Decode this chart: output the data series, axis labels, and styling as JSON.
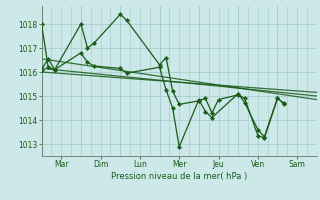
{
  "bg_color": "#cce8e8",
  "grid_color": "#aacece",
  "line_color": "#1a5c1a",
  "days": [
    "Mar",
    "Dim",
    "Lun",
    "Mer",
    "Jeu",
    "Ven",
    "Sam"
  ],
  "xlabel": "Pression niveau de la mer( hPa )",
  "ylim": [
    1012.5,
    1018.75
  ],
  "yticks": [
    1013,
    1014,
    1015,
    1016,
    1017,
    1018
  ],
  "xlim": [
    0,
    168
  ],
  "day_positions": [
    12,
    36,
    60,
    84,
    108,
    132,
    156
  ],
  "day_sep_x": [
    0,
    24,
    48,
    72,
    96,
    120,
    144,
    168
  ],
  "series1_x": [
    0,
    4,
    8,
    24,
    28,
    32,
    48,
    52,
    72,
    76,
    80,
    84,
    96,
    100,
    104,
    108,
    120,
    124,
    132,
    136,
    144,
    148
  ],
  "series1_y": [
    1018.0,
    1016.2,
    1016.1,
    1018.0,
    1017.0,
    1017.2,
    1018.4,
    1018.15,
    1016.3,
    1016.6,
    1015.2,
    1014.65,
    1014.8,
    1014.9,
    1014.3,
    1014.85,
    1015.05,
    1014.9,
    1013.35,
    1013.25,
    1014.9,
    1014.7
  ],
  "series2_x": [
    0,
    4,
    8,
    24,
    28,
    32,
    48,
    52,
    72,
    76,
    80,
    84,
    96,
    100,
    104,
    120,
    124,
    132,
    136,
    144,
    148
  ],
  "series2_y": [
    1016.1,
    1016.55,
    1016.1,
    1016.8,
    1016.4,
    1016.25,
    1016.15,
    1015.95,
    1016.2,
    1015.25,
    1014.5,
    1012.88,
    1014.85,
    1014.35,
    1014.1,
    1015.1,
    1014.72,
    1013.6,
    1013.3,
    1014.92,
    1014.65
  ],
  "trend1_x": [
    0,
    168
  ],
  "trend1_y": [
    1016.55,
    1014.85
  ],
  "trend2_x": [
    0,
    168
  ],
  "trend2_y": [
    1016.15,
    1015.0
  ],
  "trend3_x": [
    0,
    168
  ],
  "trend3_y": [
    1016.0,
    1015.15
  ]
}
